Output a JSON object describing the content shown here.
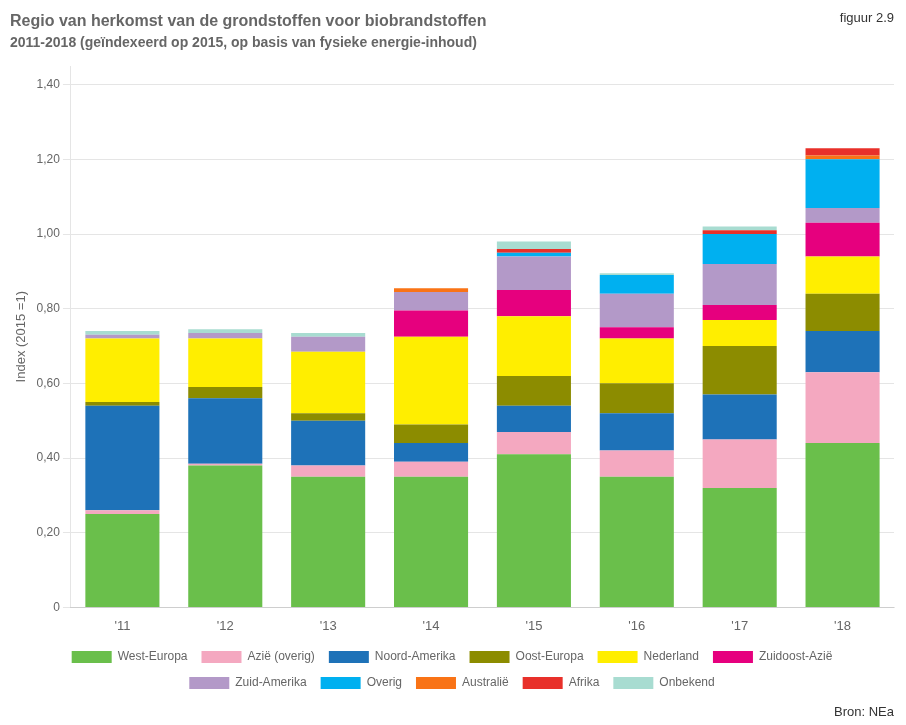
{
  "chart_data": {
    "type": "bar",
    "title": "Regio van herkomst van de grondstoffen voor biobrandstoffen",
    "subtitle": "2011-2018 (geïndexeerd op 2015, op basis van fysieke energie-inhoud)",
    "ylabel": "Index (2015 =1)",
    "annotations": [
      "figuur 2.9",
      "Bron: NEa"
    ],
    "categories": [
      "'11",
      "'12",
      "'13",
      "'14",
      "'15",
      "'16",
      "'17",
      "'18"
    ],
    "stacked": true,
    "grid": true,
    "legend": "bottom",
    "series": [
      {
        "name": "West-Europa",
        "color": "#6abf4b",
        "values": [
          0.25,
          0.38,
          0.35,
          0.35,
          0.41,
          0.35,
          0.32,
          0.44
        ]
      },
      {
        "name": "Azië (overig)",
        "color": "#f4a8c0",
        "values": [
          0.01,
          0.005,
          0.03,
          0.04,
          0.06,
          0.07,
          0.13,
          0.19
        ]
      },
      {
        "name": "Noord-Amerika",
        "color": "#1e72b8",
        "values": [
          0.28,
          0.175,
          0.12,
          0.05,
          0.07,
          0.1,
          0.12,
          0.11
        ]
      },
      {
        "name": "Oost-Europa",
        "color": "#8c8c00",
        "values": [
          0.01,
          0.03,
          0.02,
          0.05,
          0.08,
          0.08,
          0.13,
          0.1
        ]
      },
      {
        "name": "Nederland",
        "color": "#ffee00",
        "values": [
          0.17,
          0.13,
          0.165,
          0.235,
          0.16,
          0.12,
          0.07,
          0.1
        ]
      },
      {
        "name": "Zuidoost-Azië",
        "color": "#e6007e",
        "values": [
          0.0,
          0.0,
          0.0,
          0.07,
          0.07,
          0.03,
          0.04,
          0.09
        ]
      },
      {
        "name": "Zuid-Amerika",
        "color": "#b399c8",
        "values": [
          0.01,
          0.015,
          0.04,
          0.05,
          0.09,
          0.09,
          0.11,
          0.04
        ]
      },
      {
        "name": "Overig",
        "color": "#00b0f0",
        "values": [
          0.0,
          0.0,
          0.0,
          0.0,
          0.01,
          0.05,
          0.08,
          0.13
        ]
      },
      {
        "name": "Australië",
        "color": "#f97316",
        "values": [
          0.0,
          0.0,
          0.0,
          0.01,
          0.0,
          0.0,
          0.0,
          0.01
        ]
      },
      {
        "name": "Afrika",
        "color": "#e8302a",
        "values": [
          0.0,
          0.0,
          0.0,
          0.0,
          0.01,
          0.0,
          0.01,
          0.02
        ]
      },
      {
        "name": "Onbekend",
        "color": "#a8dcd1",
        "values": [
          0.01,
          0.01,
          0.01,
          0.0,
          0.02,
          0.005,
          0.01,
          0.0
        ]
      }
    ],
    "ylim": [
      0,
      1.45
    ],
    "yticks": [
      0,
      {
        "value": 0.2,
        "label": "0,20"
      },
      {
        "value": 0.4,
        "label": "0,40"
      },
      {
        "value": 0.6,
        "label": "0,60"
      },
      {
        "value": 0.8,
        "label": "0,80"
      },
      {
        "value": 1.0,
        "label": "1,00"
      },
      {
        "value": 1.2,
        "label": "1,20"
      },
      {
        "value": 1.4,
        "label": "1,40"
      }
    ]
  }
}
